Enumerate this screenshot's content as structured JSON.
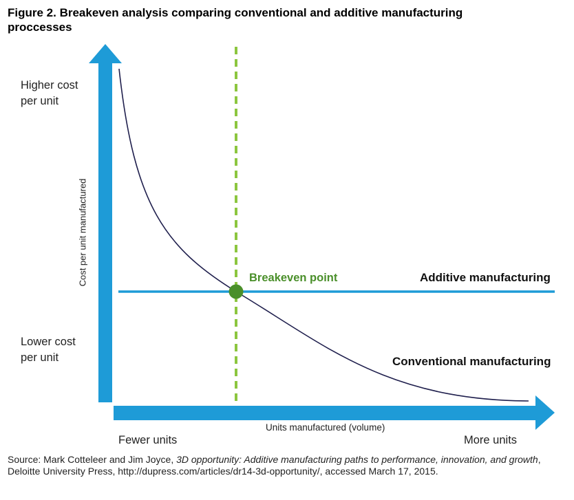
{
  "title": "Figure 2. Breakeven analysis comparing conventional and additive manufacturing proccesses",
  "y_axis": {
    "title": "Cost per unit manufactured",
    "top_label_line1": "Higher cost",
    "top_label_line2": "per unit",
    "bottom_label_line1": "Lower cost",
    "bottom_label_line2": "per unit"
  },
  "x_axis": {
    "title": "Units manufactured (volume)",
    "left_label": "Fewer units",
    "right_label": "More units"
  },
  "series": {
    "additive": "Additive manufacturing",
    "conventional": "Conventional manufacturing"
  },
  "breakeven_label": "Breakeven point",
  "source": {
    "prefix": "Source: Mark Cotteleer and Jim Joyce, ",
    "work": "3D opportunity: Additive manufacturing paths to performance, innovation, and growth",
    "suffix": ", Deloitte University Press, http://dupress.com/articles/dr14-3d-opportunity/, accessed March 17, 2015."
  },
  "colors": {
    "axis": "#1e9bd7",
    "curve": "#1f1f4d",
    "breakeven": "#4a8f2a",
    "dashed": "#8cc63f"
  }
}
